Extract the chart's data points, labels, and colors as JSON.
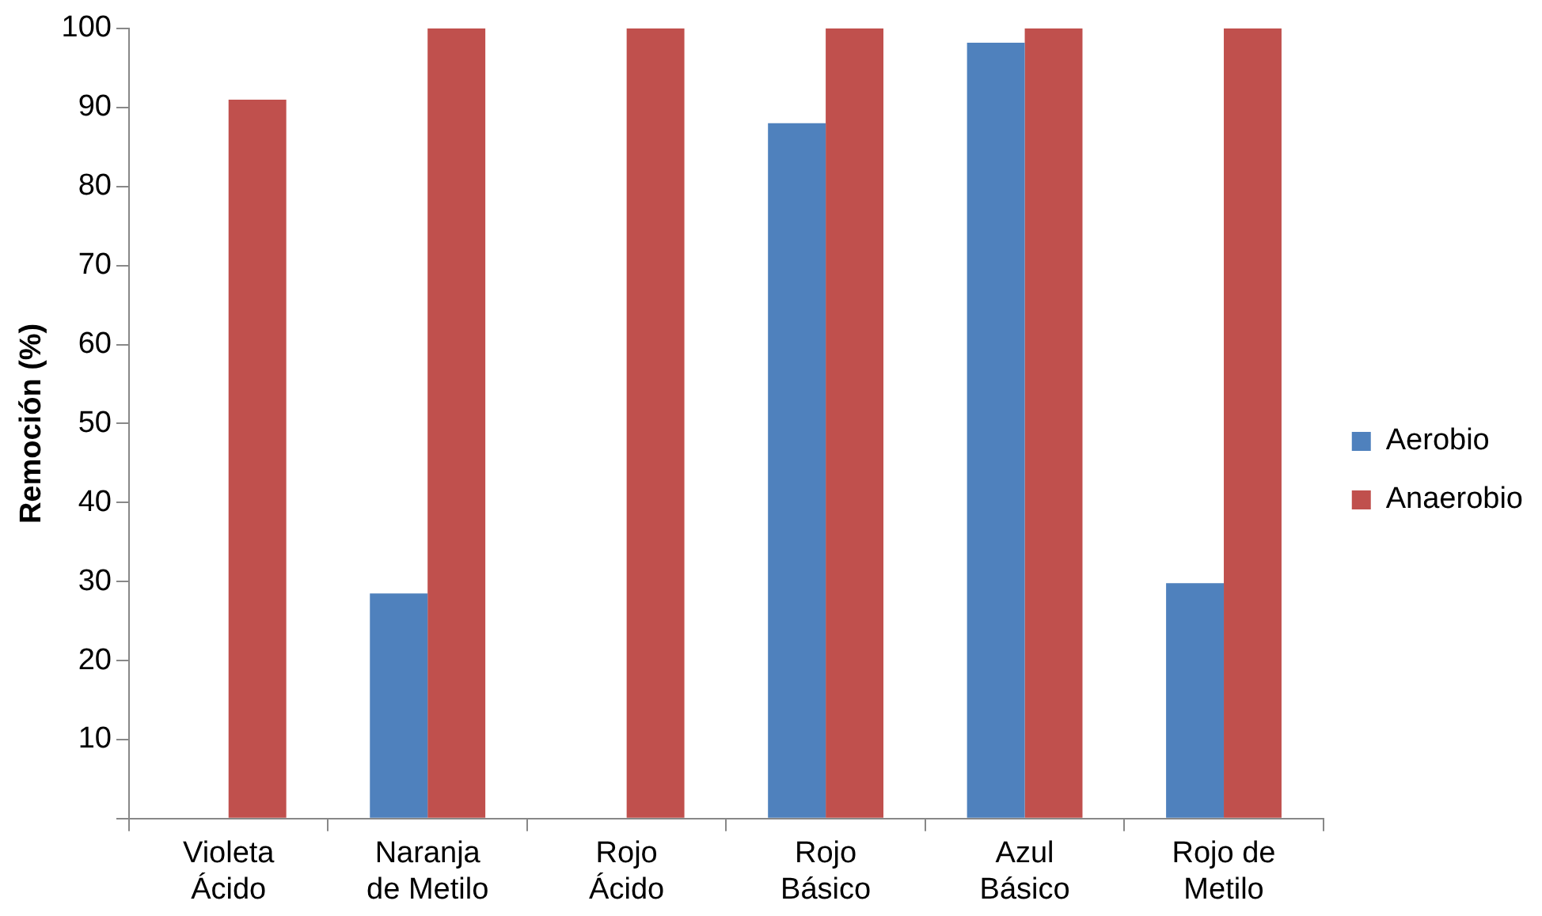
{
  "chart_data": {
    "type": "bar",
    "ylabel": "Remoción (%)",
    "categories": [
      "Violeta Ácido",
      "Naranja de Metilo",
      "Rojo Ácido",
      "Rojo Básico",
      "Azul Básico",
      "Rojo de Metilo"
    ],
    "series": [
      {
        "name": "Aerobio",
        "color": "#4f81bd",
        "values": [
          0,
          28.5,
          0,
          88,
          98.2,
          29.8
        ]
      },
      {
        "name": "Anaerobio",
        "color": "#c0504d",
        "values": [
          91,
          100,
          100,
          100,
          100,
          100
        ]
      }
    ],
    "ylim": [
      0,
      100
    ],
    "yticks": [
      {
        "value": 0,
        "label": null
      },
      10,
      20,
      30,
      40,
      50,
      60,
      70,
      80,
      90,
      100
    ],
    "legend": "right"
  }
}
